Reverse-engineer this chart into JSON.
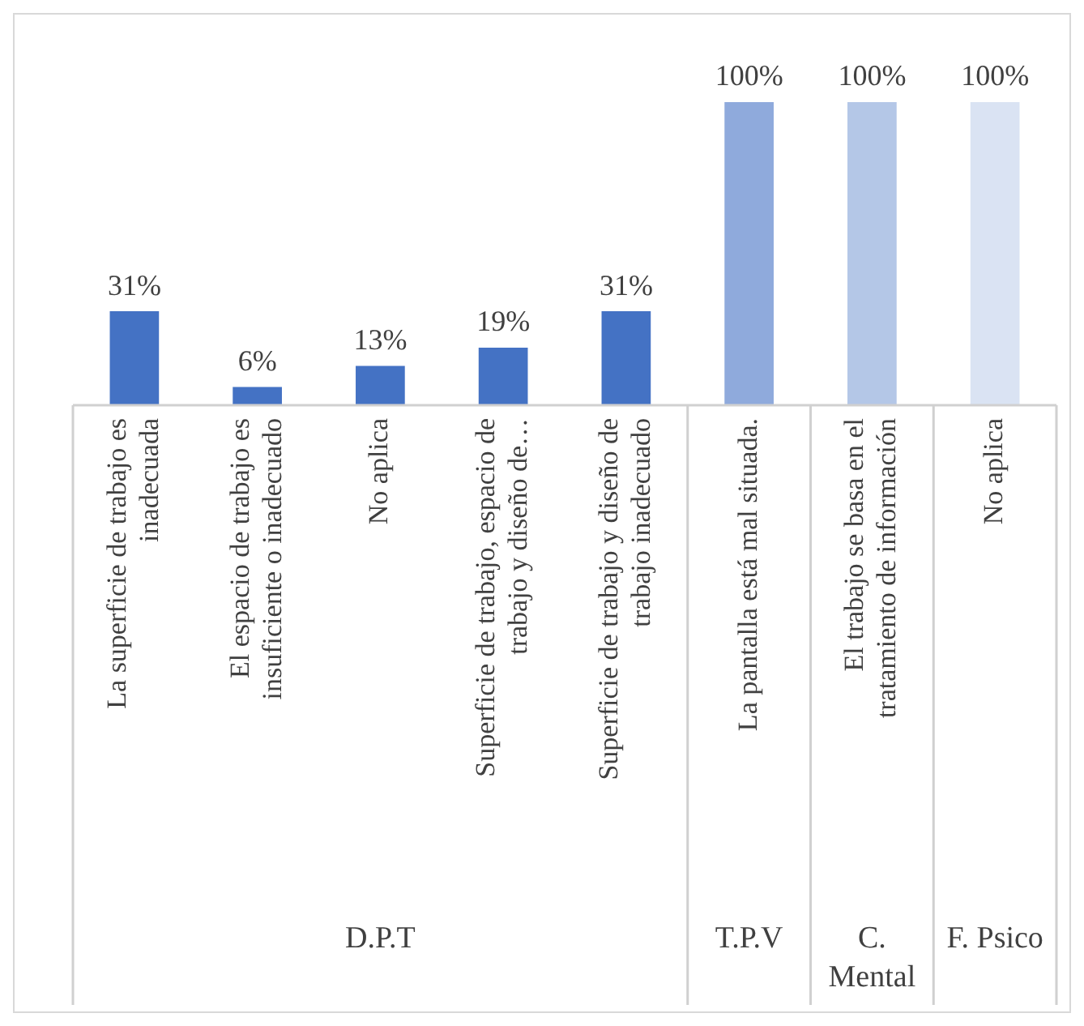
{
  "chart_data": {
    "type": "bar",
    "categories": [
      "La superficie de trabajo es inadecuada",
      "El espacio de trabajo es insuficiente o inadecuado",
      "No aplica",
      "Superficie de trabajo, espacio de trabajo y diseño de…",
      "Superficie de trabajo y diseño de trabajo inadecuado",
      "La pantalla está mal situada.",
      "El trabajo se basa en el tratamiento de información",
      "No aplica"
    ],
    "values": [
      31,
      6,
      13,
      19,
      31,
      100,
      100,
      100
    ],
    "value_labels": [
      "31%",
      "6%",
      "13%",
      "19%",
      "31%",
      "100%",
      "100%",
      "100%"
    ],
    "colors": [
      "#4472c4",
      "#4472c4",
      "#4472c4",
      "#4472c4",
      "#4472c4",
      "#8faadc",
      "#b4c7e7",
      "#dae3f3"
    ],
    "annotations": [
      "D.P.T",
      "T.P.V",
      "C. Mental",
      "F. Psico"
    ],
    "legend": false,
    "grid": false
  }
}
